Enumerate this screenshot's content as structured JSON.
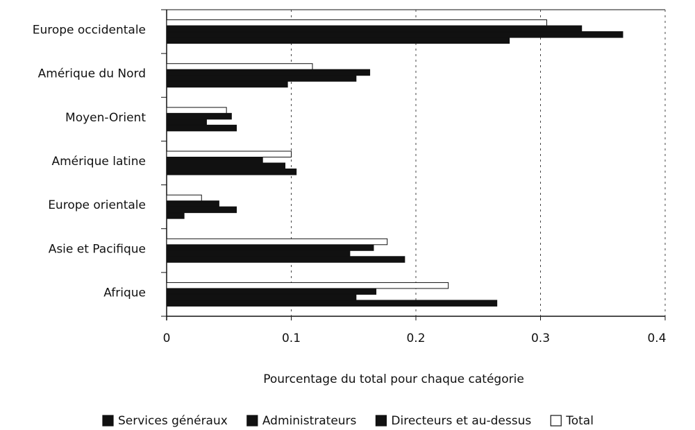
{
  "chart_data": {
    "type": "barh",
    "x_label": "Pourcentage du total pour chaque catégorie",
    "categories": [
      "Europe occidentale",
      "Amérique du Nord",
      "Moyen-Orient",
      "Amérique latine",
      "Europe orientale",
      "Asie et Pacifique",
      "Afrique"
    ],
    "series": [
      {
        "name": "Services généraux",
        "color": "#111111",
        "values": [
          0.275,
          0.097,
          0.056,
          0.104,
          0.014,
          0.191,
          0.265
        ]
      },
      {
        "name": "Administrateurs",
        "color": "#111111",
        "values": [
          0.366,
          0.152,
          0.032,
          0.095,
          0.056,
          0.147,
          0.152
        ]
      },
      {
        "name": "Directeurs et au-dessus",
        "color": "#111111",
        "values": [
          0.333,
          0.163,
          0.052,
          0.077,
          0.042,
          0.166,
          0.168
        ]
      },
      {
        "name": "Total",
        "color": "#ffffff",
        "values": [
          0.305,
          0.117,
          0.048,
          0.1,
          0.028,
          0.177,
          0.226
        ]
      }
    ],
    "xlim": [
      0,
      0.4
    ],
    "xticks": [
      0,
      0.1,
      0.2,
      0.3,
      0.4
    ],
    "grid": true
  }
}
